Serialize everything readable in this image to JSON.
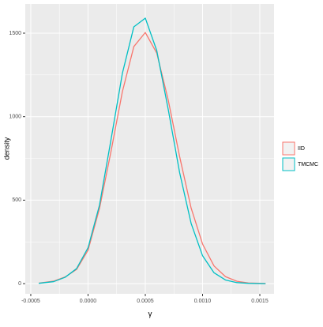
{
  "chart_data": {
    "type": "line",
    "x_label": "γ",
    "y_label": "density",
    "x": [
      -0.00043,
      -0.0003,
      -0.0002,
      -0.0001,
      0,
      0.0001,
      0.0002,
      0.0003,
      0.0004,
      0.0005,
      0.0006,
      0.0007,
      0.0008,
      0.0009,
      0.001,
      0.0011,
      0.0012,
      0.0013,
      0.0014,
      0.00155
    ],
    "series": [
      {
        "name": "IID",
        "color": "#f8766d",
        "values": [
          3,
          15,
          40,
          85,
          200,
          450,
          790,
          1150,
          1420,
          1504,
          1381,
          1100,
          760,
          453,
          237,
          106,
          42,
          14,
          4,
          1
        ]
      },
      {
        "name": "TMCMC",
        "color": "#00bfc4",
        "values": [
          2,
          12,
          38,
          90,
          215,
          470,
          860,
          1260,
          1538,
          1590,
          1396,
          1044,
          664,
          361,
          167,
          65,
          22,
          6,
          2,
          0
        ]
      }
    ],
    "xlim": [
      -0.000548,
      0.001624
    ],
    "ylim": [
      -61,
      1675
    ],
    "xticks": [
      -0.0005,
      {
        "value": 0,
        "label": "0.0000"
      },
      0.0005,
      {
        "value": 0.001,
        "label": "0.0010"
      },
      0.0015
    ],
    "yticks": [
      0,
      500,
      1000,
      1500
    ],
    "grid": true,
    "legend": "right"
  }
}
